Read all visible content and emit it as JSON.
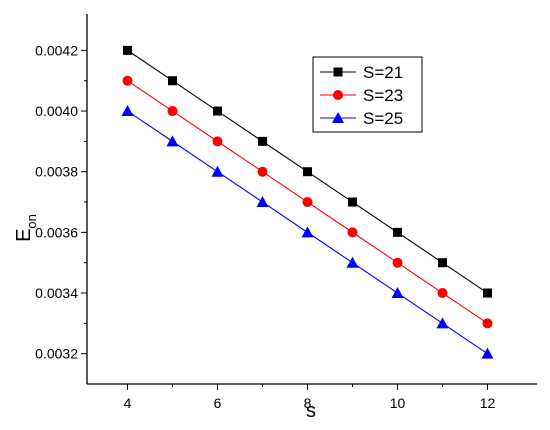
{
  "chart_data": {
    "type": "line",
    "title": "",
    "xlabel": "s",
    "ylabel_main": "E",
    "ylabel_sub": "on",
    "x": [
      4,
      5,
      6,
      7,
      8,
      9,
      10,
      11,
      12
    ],
    "xlim": [
      3.1,
      13.1
    ],
    "ylim": [
      0.0031,
      0.00432
    ],
    "xticks": [
      "4",
      "6",
      "8",
      "10",
      "12"
    ],
    "yticks": [
      "0.0032",
      "0.0034",
      "0.0036",
      "0.0038",
      "0.0040",
      "0.0042"
    ],
    "grid": false,
    "legend_position": "top-right",
    "series": [
      {
        "name": "S=21",
        "color": "#000000",
        "marker": "square",
        "values": [
          0.0042,
          0.0041,
          0.004,
          0.0039,
          0.0038,
          0.0037,
          0.0036,
          0.0035,
          0.0034
        ]
      },
      {
        "name": "S=23",
        "color": "#ff0000",
        "marker": "circle",
        "values": [
          0.0041,
          0.004,
          0.0039,
          0.0038,
          0.0037,
          0.0036,
          0.0035,
          0.0034,
          0.0033
        ]
      },
      {
        "name": "S=25",
        "color": "#0000ff",
        "marker": "triangle",
        "values": [
          0.004,
          0.0039,
          0.0038,
          0.0037,
          0.0036,
          0.0035,
          0.0034,
          0.0033,
          0.0032
        ]
      }
    ]
  }
}
